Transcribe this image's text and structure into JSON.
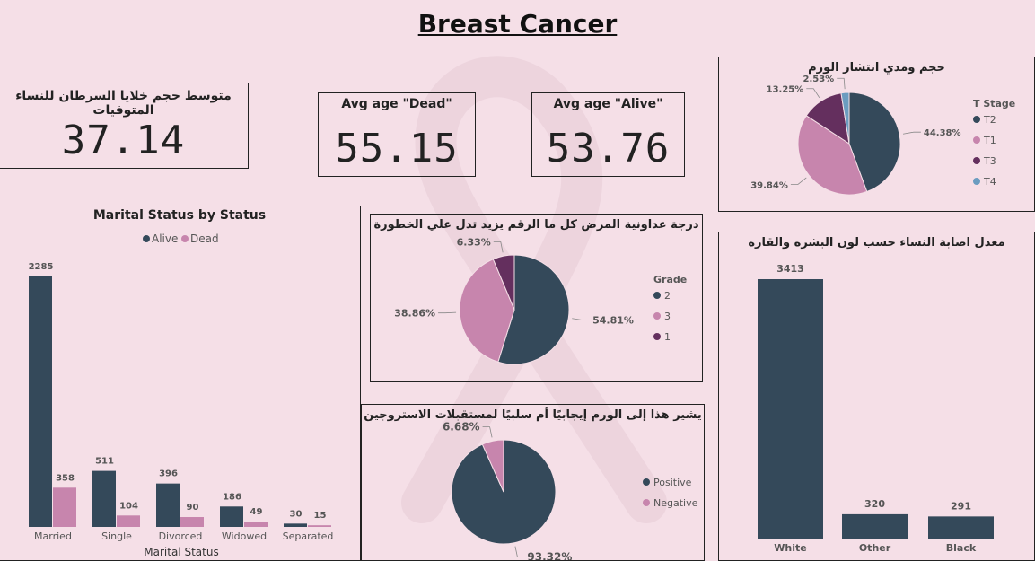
{
  "page": {
    "title": "Breast Cancer"
  },
  "kpis": {
    "tumor_avg": {
      "label": "متوسط حجم خلايا السرطان للنساء المتوفيات",
      "value": "37.14"
    },
    "age_dead": {
      "label": "Avg age \"Dead\"",
      "value": "55.15"
    },
    "age_alive": {
      "label": "Avg age \"Alive\"",
      "value": "53.76"
    }
  },
  "colors": {
    "dark": "#34495a",
    "pink": "#c785ad",
    "purple": "#642f5e",
    "blue": "#6b9cc0",
    "background": "#f5dfe7"
  },
  "chart_data": [
    {
      "id": "t_stage",
      "type": "pie",
      "title": "حجم ومدي انتشار الورم",
      "legend_title": "T Stage",
      "legend_position": "right",
      "labels": [
        "T2",
        "T1",
        "T3",
        "T4"
      ],
      "values": [
        44.38,
        39.84,
        13.25,
        2.53
      ],
      "display_labels": [
        "44.38%",
        "39.84%",
        "13.25%",
        "2.53%"
      ],
      "colors": [
        "#34495a",
        "#c785ad",
        "#642f5e",
        "#6b9cc0"
      ]
    },
    {
      "id": "marital",
      "type": "bar",
      "title": "Marital Status by Status",
      "xlabel": "Marital Status",
      "ylabel": "",
      "legend_position": "top",
      "categories": [
        "Married",
        "Single",
        "Divorced",
        "Widowed",
        "Separated"
      ],
      "series": [
        {
          "name": "Alive",
          "values": [
            2285,
            511,
            396,
            186,
            30
          ],
          "color": "#34495a"
        },
        {
          "name": "Dead",
          "values": [
            358,
            104,
            90,
            49,
            15
          ],
          "color": "#c785ad"
        }
      ],
      "ylim": [
        0,
        2285
      ]
    },
    {
      "id": "grade",
      "type": "pie",
      "title": "درجة عداونية المرض كل ما الرقم يزيد تدل علي الخطورة",
      "legend_title": "Grade",
      "legend_position": "right",
      "labels": [
        "2",
        "3",
        "1"
      ],
      "values": [
        54.81,
        38.86,
        6.33
      ],
      "display_labels": [
        "54.81%",
        "38.86%",
        "6.33%"
      ],
      "colors": [
        "#34495a",
        "#c785ad",
        "#642f5e"
      ]
    },
    {
      "id": "estrogen",
      "type": "pie",
      "title": "يشير هذا إلى الورم إيجابيًا أم سلبيًا لمستقبلات الاستروجين",
      "legend_title": "",
      "legend_position": "right",
      "labels": [
        "Positive",
        "Negative"
      ],
      "values": [
        93.32,
        6.68
      ],
      "display_labels": [
        "93.32%",
        "6.68%"
      ],
      "colors": [
        "#34495a",
        "#c785ad"
      ]
    },
    {
      "id": "race",
      "type": "bar",
      "title": "معدل اصابة النساء حسب لون البشره والقاره",
      "xlabel": "",
      "ylabel": "",
      "categories": [
        "White",
        "Other",
        "Black"
      ],
      "values": [
        3413,
        320,
        291
      ],
      "color": "#34495a",
      "ylim": [
        0,
        3413
      ]
    }
  ]
}
